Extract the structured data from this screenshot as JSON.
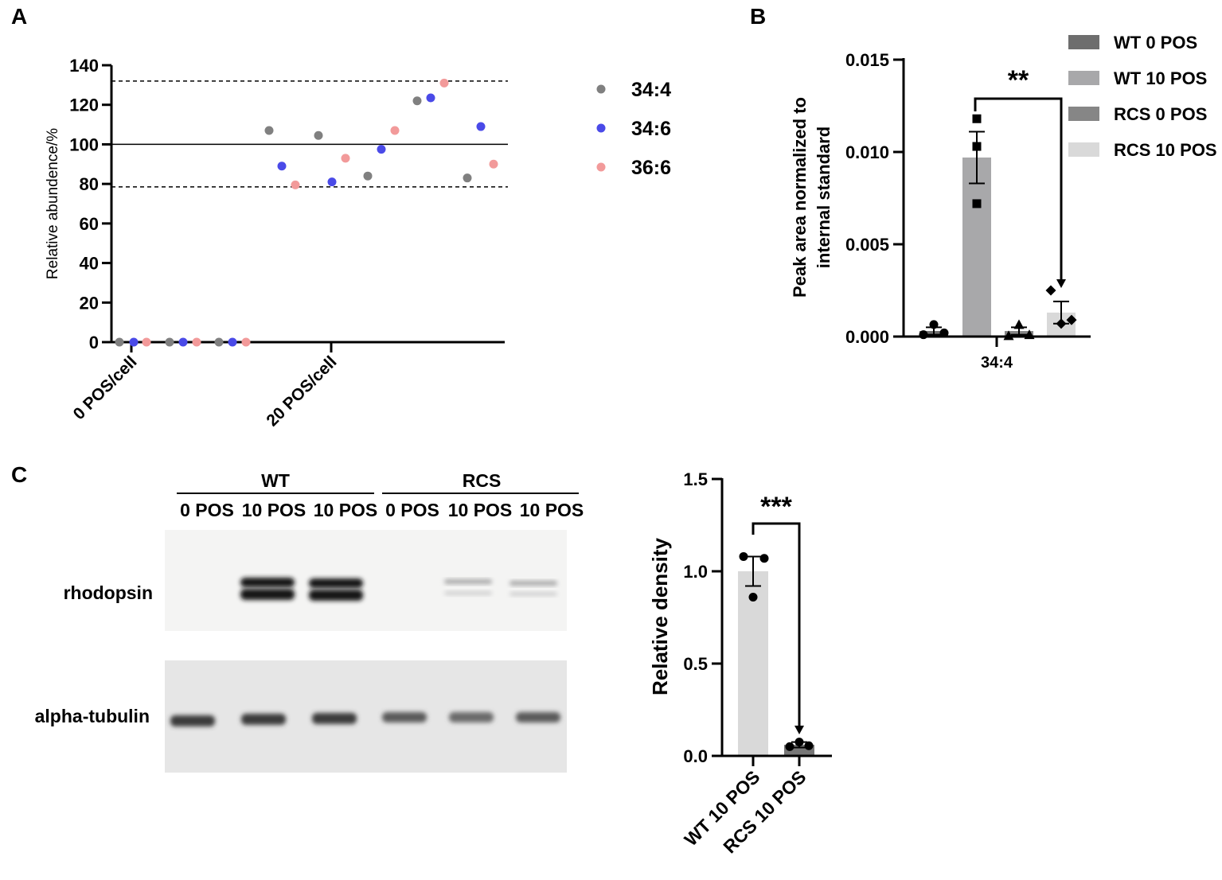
{
  "panel_labels": {
    "a": "A",
    "b": "B",
    "c": "C"
  },
  "chart_data": [
    {
      "panel": "A",
      "type": "scatter",
      "ylabel": "Relative abundence/%",
      "ylim": [
        0,
        140
      ],
      "yticks": [
        "0",
        "20",
        "40",
        "60",
        "80",
        "100",
        "120",
        "140"
      ],
      "categories": [
        "0 POS/cell",
        "20 POS/cell"
      ],
      "reference_lines": [
        {
          "value": 100,
          "style": "solid"
        },
        {
          "value": 132,
          "style": "dashed"
        },
        {
          "value": 78.5,
          "style": "dashed"
        }
      ],
      "series": [
        {
          "name": "34:4",
          "color": "#808080",
          "points": [
            [
              0,
              0
            ],
            [
              0,
              0
            ],
            [
              0,
              0
            ],
            [
              1,
              107
            ],
            [
              1,
              104.5
            ],
            [
              1,
              84
            ],
            [
              1,
              122
            ],
            [
              1,
              83
            ]
          ]
        },
        {
          "name": "34:6",
          "color": "#4a4ae8",
          "points": [
            [
              0,
              0
            ],
            [
              0,
              0
            ],
            [
              0,
              0
            ],
            [
              1,
              89
            ],
            [
              1,
              81
            ],
            [
              1,
              97.5
            ],
            [
              1,
              123.5
            ],
            [
              1,
              109
            ]
          ]
        },
        {
          "name": "36:6",
          "color": "#f29a9a",
          "points": [
            [
              0,
              0
            ],
            [
              0,
              0
            ],
            [
              0,
              0
            ],
            [
              1,
              79.5
            ],
            [
              1,
              93
            ],
            [
              1,
              107
            ],
            [
              1,
              131
            ],
            [
              1,
              90
            ]
          ]
        }
      ],
      "legend_position": "right"
    },
    {
      "panel": "B",
      "type": "bar",
      "ylabel": "Peak area normalized to internal standard",
      "ylim": [
        0,
        0.015
      ],
      "yticks": [
        "0.000",
        "0.005",
        "0.010",
        "0.015"
      ],
      "categories": [
        "34:4"
      ],
      "series": [
        {
          "name": "WT 0 POS",
          "color": "#6e6e6e",
          "value": 0.0003,
          "sem": 0.0002,
          "points": [
            0.0001,
            0.00065,
            0.0002
          ],
          "marker": "circle"
        },
        {
          "name": "WT 10 POS",
          "color": "#a8a8aa",
          "value": 0.0097,
          "sem": 0.0014,
          "points": [
            0.0118,
            0.0103,
            0.0072
          ],
          "marker": "square"
        },
        {
          "name": "RCS 0 POS",
          "color": "#868686",
          "value": 0.0003,
          "sem": 0.0002,
          "points": [
            5e-05,
            0.00065,
            0.0001
          ],
          "marker": "triangle"
        },
        {
          "name": "RCS 10 POS",
          "color": "#d9d9d9",
          "value": 0.0013,
          "sem": 0.0006,
          "points": [
            0.0025,
            0.0007,
            0.0009
          ],
          "marker": "diamond"
        }
      ],
      "significance": {
        "label": "**",
        "between": [
          "WT 10 POS",
          "RCS 10 POS"
        ]
      },
      "legend_position": "top-right"
    },
    {
      "panel": "C",
      "type": "bar",
      "ylabel": "Relative density",
      "ylim": [
        0,
        1.5
      ],
      "yticks": [
        "0.0",
        "0.5",
        "1.0",
        "1.5"
      ],
      "categories": [
        "WT 10 POS",
        "RCS 10 POS"
      ],
      "values": [
        1.0,
        0.06
      ],
      "sem": [
        0.08,
        0.015
      ],
      "points": [
        [
          1.08,
          1.07,
          0.86
        ],
        [
          0.05,
          0.075,
          0.055
        ]
      ],
      "colors": [
        "#d9d9d9",
        "#777777"
      ],
      "significance": {
        "label": "***",
        "between": [
          "WT 10 POS",
          "RCS 10 POS"
        ]
      }
    }
  ],
  "blot": {
    "groups": [
      "WT",
      "RCS"
    ],
    "lanes": [
      "0 POS",
      "10 POS",
      "10 POS",
      "0 POS",
      "10 POS",
      "10 POS"
    ],
    "rows": [
      "rhodopsin",
      "alpha-tubulin"
    ]
  }
}
